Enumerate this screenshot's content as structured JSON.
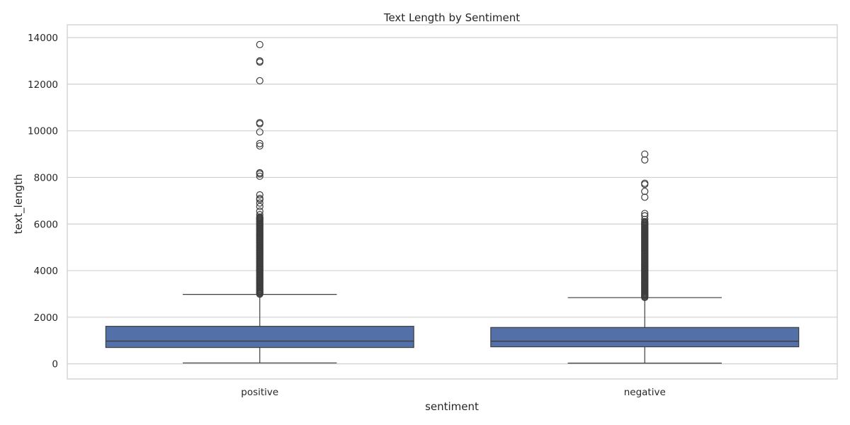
{
  "chart_data": {
    "type": "boxplot",
    "title": "Text Length by Sentiment",
    "xlabel": "sentiment",
    "ylabel": "text_length",
    "ylim": [
      -650,
      14550
    ],
    "yticks": [
      0,
      2000,
      4000,
      6000,
      8000,
      10000,
      12000,
      14000
    ],
    "grid": true,
    "legend": "none",
    "colors": {
      "box": "#5470a8",
      "line": "#3d3d3d",
      "grid": "#d0d0d0",
      "frame": "#cccccc"
    },
    "categories": [
      "positive",
      "negative"
    ],
    "boxes": [
      {
        "category": "positive",
        "whisker_low": 40,
        "q1": 700,
        "median": 975,
        "q3": 1610,
        "whisker_high": 2980,
        "outlier_dense_range": [
          2990,
          6300
        ],
        "outliers": [
          6400,
          6550,
          6750,
          6900,
          7050,
          7100,
          7250,
          8050,
          8150,
          8200,
          9350,
          9450,
          9950,
          10300,
          10350,
          12150,
          12950,
          13000,
          13700
        ]
      },
      {
        "category": "negative",
        "whisker_low": 30,
        "q1": 730,
        "median": 970,
        "q3": 1560,
        "whisker_high": 2840,
        "outlier_dense_range": [
          2850,
          6100
        ],
        "outliers": [
          6200,
          6350,
          6450,
          7150,
          7400,
          7700,
          7750,
          8750,
          9000
        ]
      }
    ]
  }
}
